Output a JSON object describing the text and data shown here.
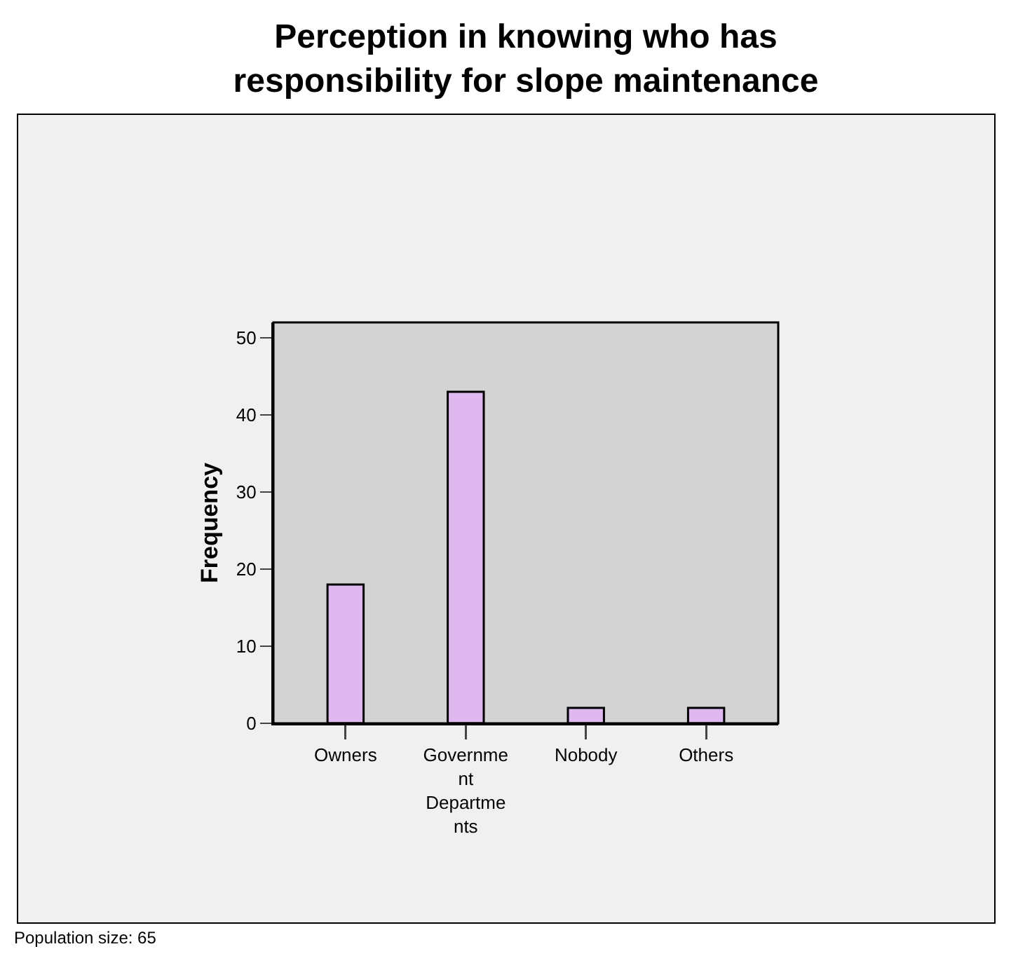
{
  "chart_data": {
    "type": "bar",
    "title": "Perception in knowing who has responsibility for slope maintenance",
    "ylabel": "Frequency",
    "categories": [
      "Owners",
      "Government Departments",
      "Nobody",
      "Others"
    ],
    "values": [
      18,
      43,
      2,
      2
    ],
    "color": "#e0b8f0",
    "ylim": [
      0,
      52
    ],
    "yticks": [
      0,
      10,
      20,
      30,
      40,
      50
    ],
    "grid": false,
    "annotations": [
      "Population size: 65"
    ]
  }
}
